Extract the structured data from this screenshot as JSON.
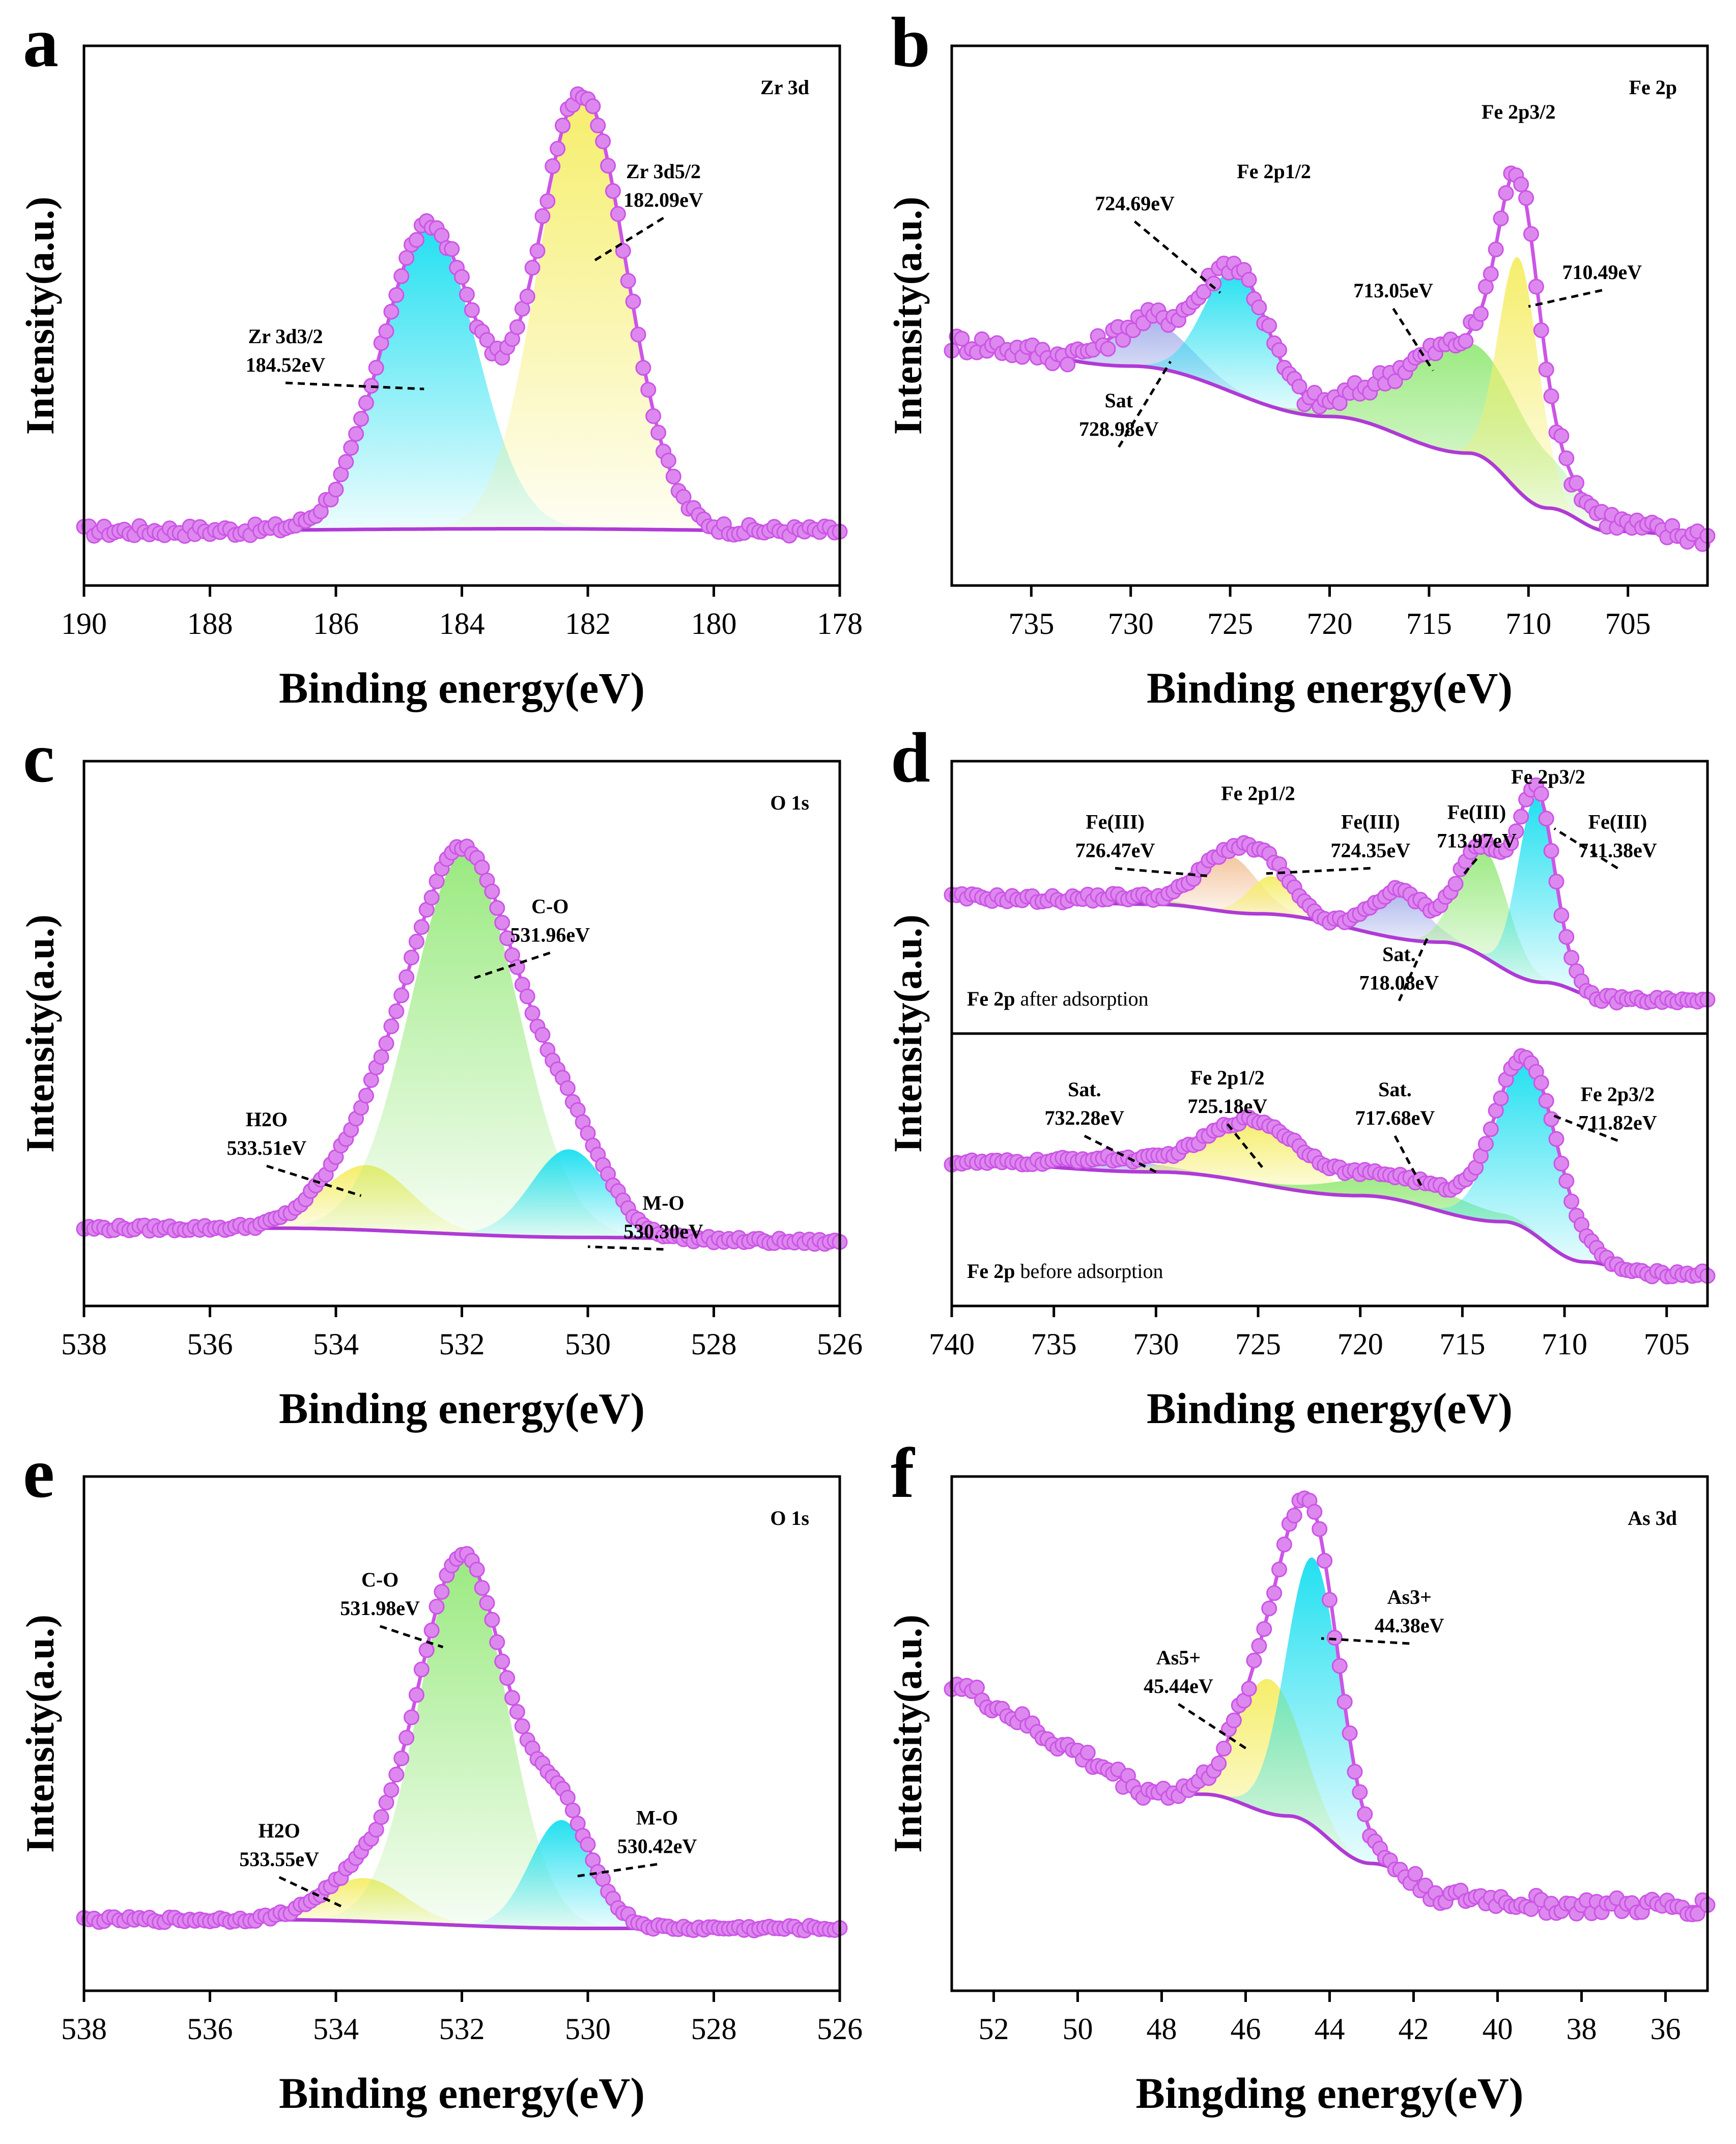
{
  "colors": {
    "markers": "#dd88ee",
    "envelope": "#cc55e6",
    "background_line": "#b03ad6",
    "cyan": "#22e0f0",
    "yellow": "#f5ee6a",
    "green": "#9aea80",
    "blue": "#aeb8ec",
    "orange": "#f4c6a0"
  },
  "chart_data": [
    {
      "id": "a",
      "panel_letter": "a",
      "type": "line",
      "subtitle": "Zr 3d",
      "xlabel": "Binding energy(eV)",
      "ylabel": "Intensity(a.u.)",
      "xlim": [
        190,
        178
      ],
      "xticks": [
        "190",
        "188",
        "186",
        "184",
        "182",
        "180",
        "178"
      ],
      "baseline": [
        [
          190,
          0.03
        ],
        [
          183,
          0.035
        ],
        [
          178,
          0.03
        ]
      ],
      "noise": 0.012,
      "peaks": [
        {
          "center": 184.52,
          "height": 0.66,
          "sigma": 0.75,
          "fill": "cyan"
        },
        {
          "center": 182.09,
          "height": 0.95,
          "sigma": 0.7,
          "fill": "yellow"
        }
      ],
      "annotations": [
        {
          "lines": [
            "Zr 3d3/2",
            "184.52eV"
          ],
          "at": [
            186.8,
            0.44
          ],
          "point": [
            184.6,
            0.34
          ]
        },
        {
          "lines": [
            "Zr 3d5/2",
            "182.09eV"
          ],
          "at": [
            180.8,
            0.8
          ],
          "point": [
            181.9,
            0.62
          ]
        }
      ]
    },
    {
      "id": "b",
      "panel_letter": "b",
      "type": "line",
      "subtitle": "Fe 2p",
      "xlabel": "Binding energy(eV)",
      "ylabel": "Intensity(a.u.)",
      "xlim": [
        739,
        701
      ],
      "xticks": [
        "735",
        "730",
        "725",
        "720",
        "715",
        "710",
        "705"
      ],
      "baseline": [
        [
          739,
          0.44
        ],
        [
          730,
          0.39
        ],
        [
          720,
          0.28
        ],
        [
          713,
          0.2
        ],
        [
          709,
          0.08
        ],
        [
          706,
          0.03
        ],
        [
          701,
          0.02
        ]
      ],
      "noise": 0.022,
      "peaks": [
        {
          "center": 728.98,
          "height": 0.1,
          "sigma": 2.0,
          "fill": "blue"
        },
        {
          "center": 724.69,
          "height": 0.27,
          "sigma": 1.6,
          "fill": "cyan"
        },
        {
          "center": 713.05,
          "height": 0.24,
          "sigma": 3.4,
          "fill": "green"
        },
        {
          "center": 710.49,
          "height": 0.51,
          "sigma": 1.0,
          "fill": "yellow"
        }
      ],
      "annotations": [
        {
          "lines": [
            "Sat",
            "728.98eV"
          ],
          "at": [
            730.6,
            0.3
          ],
          "point": [
            728.0,
            0.4
          ]
        },
        {
          "lines": [
            "724.69eV"
          ],
          "at": [
            729.8,
            0.73
          ],
          "point": [
            725.5,
            0.55
          ]
        },
        {
          "lines": [
            "Fe 2p1/2"
          ],
          "at": [
            722.8,
            0.8
          ],
          "point": null
        },
        {
          "lines": [
            "713.05eV"
          ],
          "at": [
            716.8,
            0.54
          ],
          "point": [
            714.8,
            0.38
          ]
        },
        {
          "lines": [
            "Fe 2p3/2"
          ],
          "at": [
            710.5,
            0.93
          ],
          "point": null
        },
        {
          "lines": [
            "710.49eV"
          ],
          "at": [
            706.3,
            0.58
          ],
          "point": [
            710.0,
            0.52
          ]
        }
      ]
    },
    {
      "id": "c",
      "panel_letter": "c",
      "type": "line",
      "subtitle": "O 1s",
      "xlabel": "Binding energy(eV)",
      "ylabel": "Intensity(a.u.)",
      "xlim": [
        538,
        526
      ],
      "xticks": [
        "538",
        "536",
        "534",
        "532",
        "530",
        "528",
        "526"
      ],
      "baseline": [
        [
          538,
          0.08
        ],
        [
          535,
          0.08
        ],
        [
          530,
          0.06
        ],
        [
          526,
          0.05
        ]
      ],
      "noise": 0.006,
      "peaks": [
        {
          "center": 533.51,
          "height": 0.14,
          "sigma": 0.7,
          "fill": "yellow"
        },
        {
          "center": 531.96,
          "height": 0.82,
          "sigma": 0.85,
          "fill": "green"
        },
        {
          "center": 530.3,
          "height": 0.19,
          "sigma": 0.6,
          "fill": "cyan"
        }
      ],
      "annotations": [
        {
          "lines": [
            "H2O",
            "533.51eV"
          ],
          "at": [
            535.1,
            0.3
          ],
          "point": [
            533.6,
            0.15
          ]
        },
        {
          "lines": [
            "C-O",
            "531.96eV"
          ],
          "at": [
            530.6,
            0.76
          ],
          "point": [
            531.8,
            0.62
          ]
        },
        {
          "lines": [
            "M-O",
            "530.30eV"
          ],
          "at": [
            528.8,
            0.12
          ],
          "point": [
            530.0,
            0.04
          ]
        }
      ]
    },
    {
      "id": "d",
      "panel_letter": "d",
      "type": "line",
      "stacked": true,
      "xlabel": "Binding energy(eV)",
      "ylabel": "Intensity(a.u.)",
      "xlim": [
        740,
        703
      ],
      "xticks": [
        "740",
        "735",
        "730",
        "725",
        "720",
        "715",
        "710",
        "705"
      ],
      "subpanels": [
        {
          "caption_bold": "Fe 2p",
          "caption_rest": " after adsorption",
          "baseline": [
            [
              740,
              0.49
            ],
            [
              730,
              0.46
            ],
            [
              725,
              0.42
            ],
            [
              716,
              0.3
            ],
            [
              711,
              0.13
            ],
            [
              708,
              0.06
            ],
            [
              703,
              0.05
            ]
          ],
          "noise": 0.015,
          "peaks": [
            {
              "center": 731.5,
              "height": 0.03,
              "sigma": 2.0,
              "fill": "green"
            },
            {
              "center": 726.47,
              "height": 0.24,
              "sigma": 1.4,
              "fill": "orange"
            },
            {
              "center": 724.35,
              "height": 0.16,
              "sigma": 1.1,
              "fill": "yellow"
            },
            {
              "center": 718.08,
              "height": 0.2,
              "sigma": 1.3,
              "fill": "blue"
            },
            {
              "center": 713.97,
              "height": 0.46,
              "sigma": 1.2,
              "fill": "green"
            },
            {
              "center": 711.38,
              "height": 0.78,
              "sigma": 0.9,
              "fill": "cyan"
            }
          ],
          "annotations": [
            {
              "lines": [
                "Fe(III)",
                "726.47eV"
              ],
              "at": [
                732.0,
                0.78
              ],
              "point": [
                727.5,
                0.58
              ]
            },
            {
              "lines": [
                "Fe 2p1/2"
              ],
              "at": [
                725.0,
                0.9
              ],
              "point": null
            },
            {
              "lines": [
                "Fe(III)",
                "724.35eV"
              ],
              "at": [
                719.5,
                0.78
              ],
              "point": [
                724.6,
                0.59
              ]
            },
            {
              "lines": [
                "Fe(III)",
                "713.97eV"
              ],
              "at": [
                714.3,
                0.82
              ],
              "point": [
                715.0,
                0.58
              ]
            },
            {
              "lines": [
                "Fe 2p3/2"
              ],
              "at": [
                710.8,
                0.97
              ],
              "point": null
            },
            {
              "lines": [
                "Fe(III)",
                "711.38eV"
              ],
              "at": [
                707.4,
                0.78
              ],
              "point": [
                710.5,
                0.78
              ]
            },
            {
              "lines": [
                "Sat.",
                "718.08eV"
              ],
              "at": [
                718.1,
                0.22
              ],
              "point": [
                716.7,
                0.32
              ]
            }
          ]
        },
        {
          "caption_bold": "Fe 2p",
          "caption_rest": " before adsorption",
          "baseline": [
            [
              740,
              0.52
            ],
            [
              730,
              0.48
            ],
            [
              720,
              0.38
            ],
            [
              713,
              0.27
            ],
            [
              709,
              0.1
            ],
            [
              706,
              0.05
            ],
            [
              703,
              0.05
            ]
          ],
          "noise": 0.012,
          "peaks": [
            {
              "center": 732.28,
              "height": 0.05,
              "sigma": 2.4,
              "fill": "blue"
            },
            {
              "center": 725.18,
              "height": 0.26,
              "sigma": 2.3,
              "fill": "yellow"
            },
            {
              "center": 717.68,
              "height": 0.1,
              "sigma": 3.2,
              "fill": "green"
            },
            {
              "center": 711.82,
              "height": 0.71,
              "sigma": 1.5,
              "fill": "cyan"
            }
          ],
          "annotations": [
            {
              "lines": [
                "Sat.",
                "732.28eV"
              ],
              "at": [
                733.5,
                0.8
              ],
              "point": [
                730.0,
                0.48
              ]
            },
            {
              "lines": [
                "Fe 2p1/2",
                "725.18eV"
              ],
              "at": [
                726.5,
                0.85
              ],
              "point": [
                724.8,
                0.5
              ]
            },
            {
              "lines": [
                "Sat.",
                "717.68eV"
              ],
              "at": [
                718.3,
                0.8
              ],
              "point": [
                717.0,
                0.42
              ]
            },
            {
              "lines": [
                "Fe 2p3/2",
                "711.82eV"
              ],
              "at": [
                707.4,
                0.78
              ],
              "point": [
                710.6,
                0.72
              ]
            }
          ]
        }
      ]
    },
    {
      "id": "e",
      "panel_letter": "e",
      "type": "line",
      "subtitle": "O 1s",
      "xlabel": "Binding energy(eV)",
      "ylabel": "Intensity(a.u.)",
      "xlim": [
        538,
        526
      ],
      "xticks": [
        "538",
        "536",
        "534",
        "532",
        "530",
        "528",
        "526"
      ],
      "baseline": [
        [
          538,
          0.07
        ],
        [
          535,
          0.07
        ],
        [
          530,
          0.05
        ],
        [
          526,
          0.05
        ]
      ],
      "noise": 0.006,
      "peaks": [
        {
          "center": 533.55,
          "height": 0.1,
          "sigma": 0.65,
          "fill": "yellow"
        },
        {
          "center": 531.98,
          "height": 0.85,
          "sigma": 0.7,
          "fill": "green"
        },
        {
          "center": 530.42,
          "height": 0.25,
          "sigma": 0.5,
          "fill": "cyan"
        }
      ],
      "annotations": [
        {
          "lines": [
            "H2O",
            "533.55eV"
          ],
          "at": [
            534.9,
            0.26
          ],
          "point": [
            533.9,
            0.1
          ]
        },
        {
          "lines": [
            "C-O",
            "531.98eV"
          ],
          "at": [
            533.3,
            0.84
          ],
          "point": [
            532.3,
            0.7
          ]
        },
        {
          "lines": [
            "M-O",
            "530.42eV"
          ],
          "at": [
            528.9,
            0.29
          ],
          "point": [
            530.2,
            0.17
          ]
        }
      ]
    },
    {
      "id": "f",
      "panel_letter": "f",
      "type": "line",
      "subtitle": "As 3d",
      "xlabel": "Bingding energy(eV)",
      "ylabel": "Intensity(a.u.)",
      "xlim": [
        53,
        35
      ],
      "xticks": [
        "52",
        "50",
        "48",
        "46",
        "44",
        "42",
        "40",
        "38",
        "36"
      ],
      "baseline": [
        [
          53,
          0.4
        ],
        [
          50,
          0.38
        ],
        [
          47,
          0.36
        ],
        [
          45,
          0.31
        ],
        [
          43,
          0.2
        ],
        [
          41,
          0.12
        ],
        [
          38,
          0.1
        ],
        [
          35,
          0.1
        ]
      ],
      "noise": 0.02,
      "peaks": [
        {
          "center": 45.44,
          "height": 0.31,
          "sigma": 0.75,
          "fill": "yellow"
        },
        {
          "center": 44.38,
          "height": 0.62,
          "sigma": 0.65,
          "fill": "cyan"
        }
      ],
      "tail_rise": 0.22,
      "annotations": [
        {
          "lines": [
            "As5+",
            "45.44eV"
          ],
          "at": [
            47.6,
            0.66
          ],
          "point": [
            45.9,
            0.46
          ]
        },
        {
          "lines": [
            "As3+",
            "44.38eV"
          ],
          "at": [
            42.1,
            0.8
          ],
          "point": [
            44.2,
            0.72
          ]
        }
      ]
    }
  ]
}
